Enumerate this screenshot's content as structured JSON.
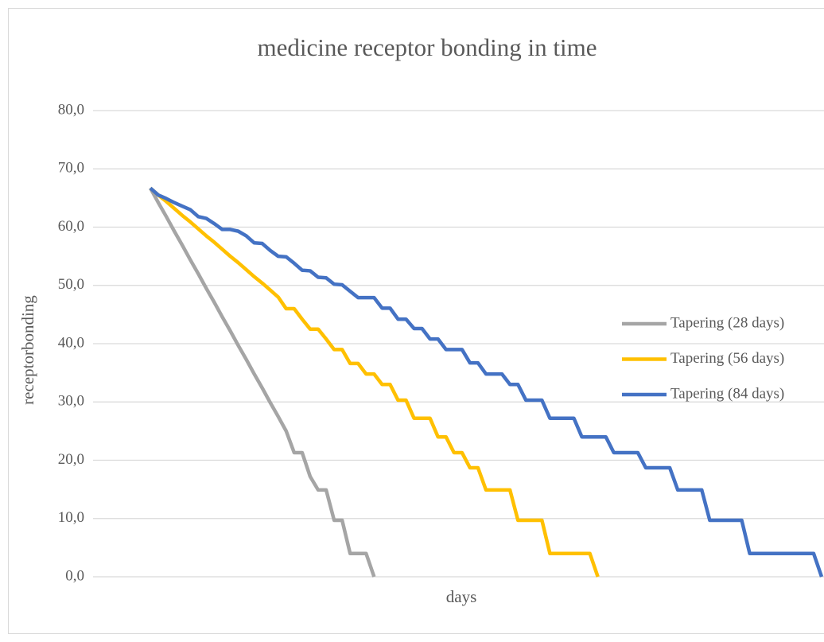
{
  "chart_data": {
    "type": "line",
    "title": "medicine receptor bonding in time",
    "x_label": "days",
    "y_label": "receptorbonding",
    "categories": [
      null,
      null,
      null,
      null,
      null,
      null,
      null,
      null,
      null,
      null,
      null,
      null,
      null,
      null,
      null,
      null,
      null,
      null,
      null,
      null,
      null,
      null,
      null,
      null,
      null,
      null,
      null,
      null,
      null,
      null,
      null,
      null,
      null,
      null,
      null,
      null,
      null,
      null,
      null,
      null,
      null,
      null,
      null,
      null,
      null,
      null,
      null,
      null,
      null,
      null,
      null,
      null,
      null,
      null,
      null,
      null,
      null,
      null,
      null,
      null,
      null,
      null,
      null,
      null,
      null,
      null,
      null,
      null,
      null,
      null,
      null,
      null,
      null,
      null,
      null,
      null,
      null,
      null,
      null,
      null,
      null,
      null,
      null,
      null,
      null
    ],
    "ylim": [
      0,
      80
    ],
    "yticks": [
      {
        "value": 0,
        "label": "0,0"
      },
      {
        "value": 10,
        "label": "10,0"
      },
      {
        "value": 20,
        "label": "20,0"
      },
      {
        "value": 30,
        "label": "30,0"
      },
      {
        "value": 40,
        "label": "40,0"
      },
      {
        "value": 50,
        "label": "50,0"
      },
      {
        "value": 60,
        "label": "60,0"
      },
      {
        "value": 70,
        "label": "70,0"
      },
      {
        "value": 80,
        "label": "80,0"
      }
    ],
    "grid": true,
    "legend": "right",
    "series": [
      {
        "name": "Tapering (28 days)",
        "color": "#a5a5a5",
        "values": [
          66.7,
          64.2,
          61.8,
          59.3,
          56.9,
          54.4,
          52.0,
          49.5,
          47.1,
          44.6,
          42.2,
          39.7,
          37.3,
          34.8,
          32.4,
          29.9,
          27.5,
          25.0,
          21.3,
          21.3,
          17.2,
          14.9,
          14.9,
          9.7,
          9.7,
          4.0,
          4.0,
          4.0,
          0,
          null,
          null,
          null,
          null,
          null,
          null,
          null,
          null,
          null,
          null,
          null,
          null,
          null,
          null,
          null,
          null,
          null,
          null,
          null,
          null,
          null,
          null,
          null,
          null,
          null,
          null,
          null,
          null,
          null,
          null,
          null,
          null,
          null,
          null,
          null,
          null,
          null,
          null,
          null,
          null,
          null,
          null,
          null,
          null,
          null,
          null,
          null,
          null,
          null,
          null,
          null,
          null,
          null,
          null,
          null,
          null
        ]
      },
      {
        "name": "Tapering (56 days)",
        "color": "#ffc000",
        "values": [
          66.7,
          65.5,
          64.4,
          63.2,
          62.0,
          60.9,
          59.7,
          58.5,
          57.4,
          56.2,
          55.0,
          53.9,
          52.7,
          51.5,
          50.4,
          49.2,
          48.0,
          46.0,
          46.0,
          44.2,
          42.5,
          42.5,
          40.8,
          39.0,
          39.0,
          36.6,
          36.6,
          34.8,
          34.8,
          33.0,
          33.0,
          30.3,
          30.3,
          27.2,
          27.2,
          27.2,
          24.0,
          24.0,
          21.3,
          21.3,
          18.7,
          18.7,
          14.9,
          14.9,
          14.9,
          14.9,
          9.7,
          9.7,
          9.7,
          9.7,
          4.0,
          4.0,
          4.0,
          4.0,
          4.0,
          4.0,
          0,
          null,
          null,
          null,
          null,
          null,
          null,
          null,
          null,
          null,
          null,
          null,
          null,
          null,
          null,
          null,
          null,
          null,
          null,
          null,
          null,
          null,
          null,
          null,
          null,
          null,
          null,
          null,
          null
        ]
      },
      {
        "name": "Tapering (84 days)",
        "color": "#4472c4",
        "values": [
          66.7,
          65.5,
          64.9,
          64.2,
          63.6,
          63.0,
          61.8,
          61.5,
          60.6,
          59.6,
          59.6,
          59.3,
          58.5,
          57.3,
          57.2,
          56.0,
          55.0,
          54.9,
          53.8,
          52.6,
          52.5,
          51.4,
          51.3,
          50.2,
          50.1,
          49.0,
          47.9,
          47.9,
          47.9,
          46.1,
          46.1,
          44.2,
          44.2,
          42.6,
          42.6,
          40.8,
          40.8,
          39.0,
          39.0,
          39.0,
          36.7,
          36.7,
          34.8,
          34.8,
          34.8,
          33.0,
          33.0,
          30.3,
          30.3,
          30.3,
          27.2,
          27.2,
          27.2,
          27.2,
          24.0,
          24.0,
          24.0,
          24.0,
          21.3,
          21.3,
          21.3,
          21.3,
          18.7,
          18.7,
          18.7,
          18.7,
          14.9,
          14.9,
          14.9,
          14.9,
          9.7,
          9.7,
          9.7,
          9.7,
          9.7,
          4.0,
          4.0,
          4.0,
          4.0,
          4.0,
          4.0,
          4.0,
          4.0,
          4.0,
          0
        ]
      }
    ]
  }
}
